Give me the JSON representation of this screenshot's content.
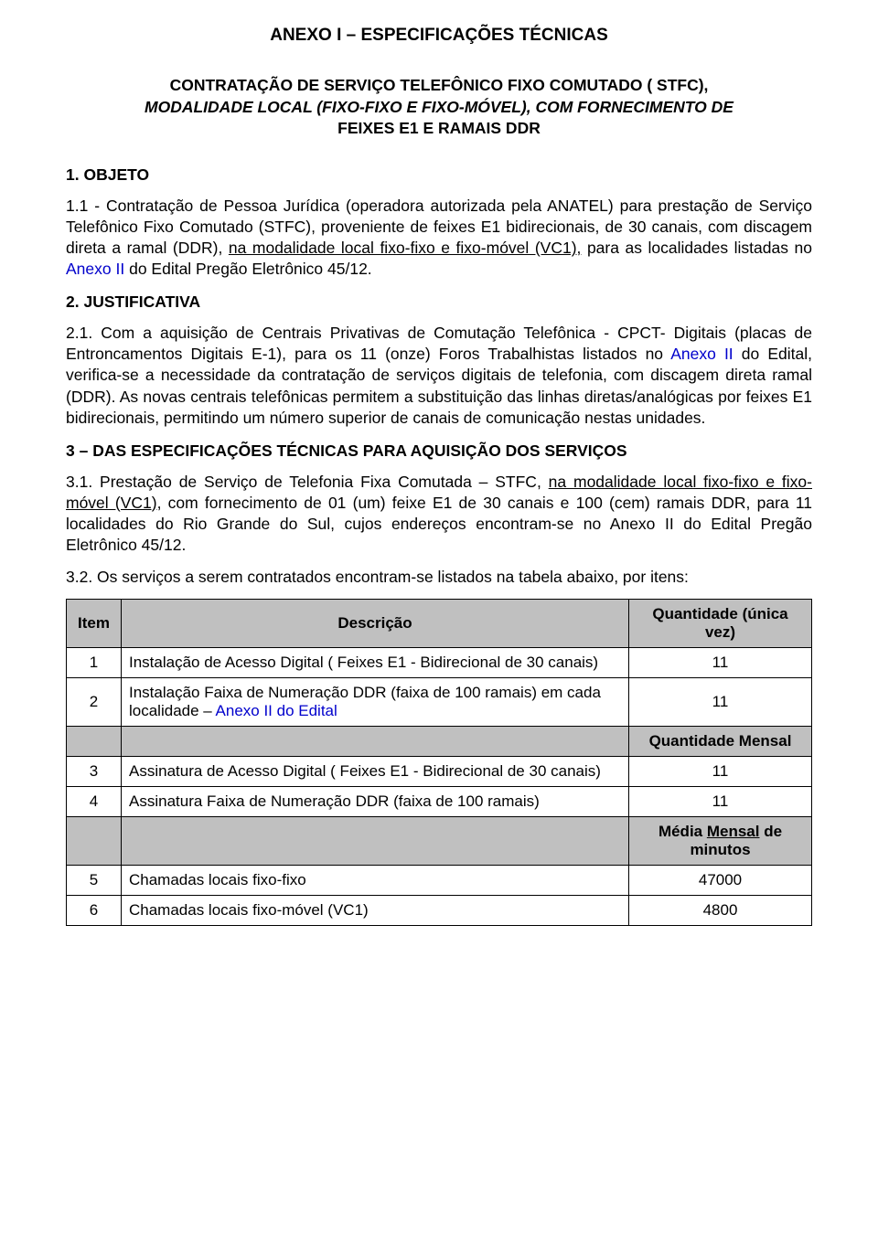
{
  "title": "ANEXO  I – ESPECIFICAÇÕES TÉCNICAS",
  "subtitle_l1": "CONTRATAÇÃO DE SERVIÇO TELEFÔNICO FIXO COMUTADO ( STFC),",
  "subtitle_l2": "MODALIDADE LOCAL (FIXO-FIXO E FIXO-MÓVEL), COM FORNECIMENTO DE",
  "subtitle_l3": "FEIXES E1 E RAMAIS DDR",
  "s1_head": "1. OBJETO",
  "s1_p1a": "1.1 - Contratação de Pessoa Jurídica (operadora autorizada pela ANATEL) para prestação de Serviço Telefônico Fixo Comutado (STFC), proveniente de feixes E1 bidirecionais, de 30 canais, com discagem direta a ramal (DDR), ",
  "s1_p1u": "na modalidade local fixo-fixo e fixo-móvel (VC1),",
  "s1_p1b": " para as localidades listadas no ",
  "s1_p1link": "Anexo II",
  "s1_p1c": " do Edital Pregão Eletrônico 45/12.",
  "s2_head": "2. JUSTIFICATIVA",
  "s2_p1a": "2.1. Com a aquisição de Centrais Privativas de Comutação Telefônica - CPCT- Digitais (placas de Entroncamentos Digitais E-1), para os 11 (onze) Foros Trabalhistas listados no ",
  "s2_p1link": "Anexo II",
  "s2_p1b": " do Edital, verifica-se a necessidade da contratação de serviços digitais de telefonia, com discagem direta ramal (DDR). As novas centrais telefônicas permitem a substituição das linhas diretas/analógicas por feixes E1 bidirecionais, permitindo um número superior de canais de comunicação nestas unidades.",
  "s3_head": "3 – DAS ESPECIFICAÇÕES TÉCNICAS PARA AQUISIÇÃO DOS SERVIÇOS",
  "s3_p1a": "3.1. Prestação de Serviço de Telefonia Fixa Comutada – STFC, ",
  "s3_p1u": "na modalidade local fixo-fixo e fixo-móvel (VC1),",
  "s3_p1b": " com fornecimento de 01 (um) feixe  E1 de 30 canais e 100 (cem) ramais DDR, para 11 localidades do Rio Grande do Sul, cujos endereços encontram-se no Anexo II do Edital Pregão Eletrônico 45/12.",
  "s3_p2": "3.2. Os serviços a serem contratados encontram-se listados na tabela abaixo, por itens:",
  "table": {
    "header_item": "Item",
    "header_desc": "Descrição",
    "header_qty1": "Quantidade (única vez)",
    "header_qty2": "Quantidade Mensal",
    "header_qty3_a": "Média ",
    "header_qty3_u": "Mensal",
    "header_qty3_b": " de minutos",
    "rows": [
      {
        "n": "1",
        "desc_a": "Instalação de Acesso Digital ( Feixes E1 - Bidirecional de 30 canais)",
        "link": "",
        "desc_b": "",
        "qty": "11"
      },
      {
        "n": "2",
        "desc_a": "Instalação Faixa de Numeração DDR (faixa de 100 ramais) em cada localidade – ",
        "link": "Anexo II do Edital",
        "desc_b": "",
        "qty": "11"
      },
      {
        "n": "3",
        "desc_a": "Assinatura de Acesso Digital ( Feixes E1 - Bidirecional de 30 canais)",
        "link": "",
        "desc_b": "",
        "qty": "11"
      },
      {
        "n": "4",
        "desc_a": "Assinatura  Faixa de Numeração DDR (faixa de 100 ramais)",
        "link": "",
        "desc_b": "",
        "qty": "11"
      },
      {
        "n": "5",
        "desc_a": "Chamadas locais fixo-fixo",
        "link": "",
        "desc_b": "",
        "qty": "47000"
      },
      {
        "n": "6",
        "desc_a": "Chamadas locais fixo-móvel (VC1)",
        "link": "",
        "desc_b": "",
        "qty": "4800"
      }
    ]
  },
  "colors": {
    "text": "#000000",
    "link": "#0000cc",
    "table_header_bg": "#c0c0c0",
    "background": "#ffffff",
    "border": "#000000"
  }
}
